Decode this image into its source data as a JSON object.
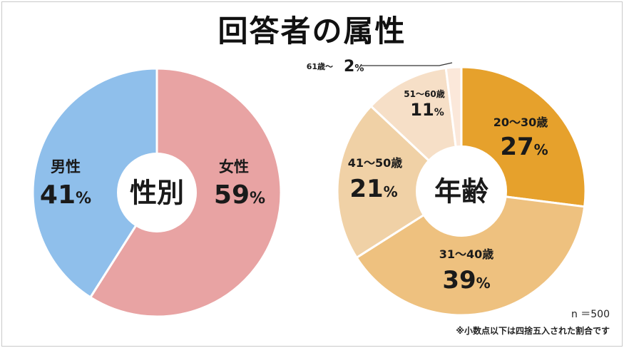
{
  "title": "回答者の属性",
  "chart_data": [
    {
      "type": "pie",
      "center_label": "性別",
      "categories": [
        "女性",
        "男性"
      ],
      "values": [
        59,
        41
      ],
      "colors": [
        "#e8a3a3",
        "#8fbfeb"
      ]
    },
    {
      "type": "pie",
      "center_label": "年齢",
      "categories": [
        "20～30歳",
        "31～40歳",
        "41～50歳",
        "51～60歳",
        "61歳～"
      ],
      "values": [
        27,
        39,
        21,
        11,
        2
      ],
      "colors": [
        "#e6a12c",
        "#eec17f",
        "#f0d1a6",
        "#f6dfc7",
        "#fbe8da"
      ]
    }
  ],
  "footnotes": {
    "n_label": "n ＝500",
    "rounding_note": "※小数点以下は四捨五入された割合です"
  }
}
